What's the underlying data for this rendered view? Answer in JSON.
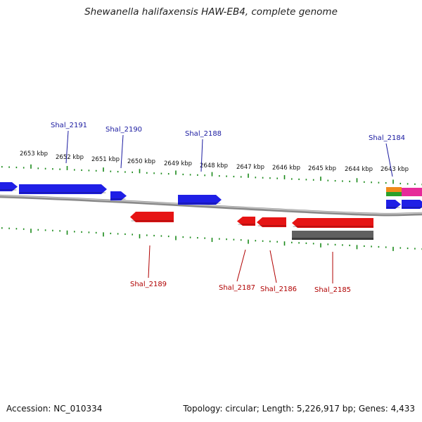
{
  "title": "Shewanella halifaxensis HAW-EB4, complete genome",
  "footer": {
    "accession": "Accession: NC_010334",
    "summary": "Topology: circular; Length: 5,226,917 bp; Genes: 4,433"
  },
  "colors": {
    "forward_gene": "#1f1fe6",
    "reverse_gene": "#e61414",
    "grey_feature": "#606060",
    "tick": "#1a8a1a",
    "backbone": "#8a8a8a",
    "forward_label": "#1a1aa0",
    "reverse_label": "#b00000",
    "orange_feature": "#f08a1a",
    "green_feature": "#2aa02a",
    "pink_feature": "#e62a9a"
  },
  "scale_labels": [
    "2653 kbp",
    "2652 kbp",
    "2651 kbp",
    "2650 kbp",
    "2649 kbp",
    "2648 kbp",
    "2647 kbp",
    "2646 kbp",
    "2645 kbp",
    "2644 kbp",
    "2643 kbp"
  ],
  "forward_genes": [
    "Shal_2191",
    "Shal_2190",
    "Shal_2188",
    "Shal_2184"
  ],
  "reverse_genes": [
    "Shal_2189",
    "Shal_2187",
    "Shal_2186",
    "Shal_2185"
  ]
}
